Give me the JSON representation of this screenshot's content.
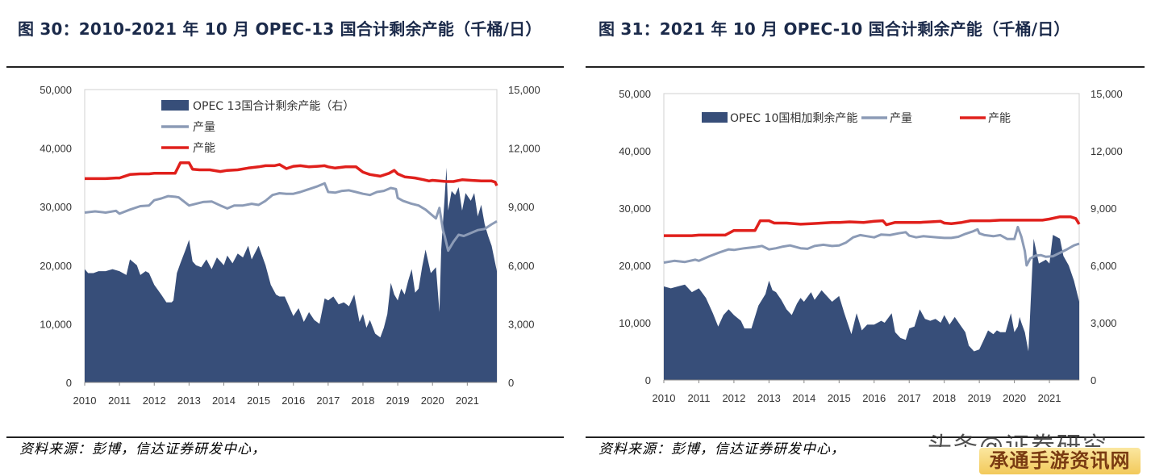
{
  "figures": [
    {
      "title": "图 30：2010-2021 年 10 月  OPEC-13 国合计剩余产能（千桶/日）",
      "source": "资料来源：彭博，信达证券研发中心，"
    },
    {
      "title": "图 31：2021 年 10 月 OPEC-10 国合计剩余产能（千桶/日）",
      "source": "资料来源：彭博，信达证券研发中心，"
    }
  ],
  "watermark": {
    "top": "头条@证券研究",
    "bottom": "承通手游资讯网"
  },
  "colors": {
    "spare": "#374e79",
    "production": "#8c9bb6",
    "capacity": "#e0201c"
  },
  "chart_data": [
    {
      "type": "area+line",
      "title": "图 30：2010-2021 年 10 月  OPEC-13 国合计剩余产能（千桶/日）",
      "x_ticks": [
        "2010",
        "2011",
        "2012",
        "2013",
        "2014",
        "2015",
        "2016",
        "2017",
        "2018",
        "2019",
        "2020",
        "2021"
      ],
      "x_range": [
        2010.0,
        2021.85
      ],
      "y_left": {
        "ticks": [
          "0",
          "10,000",
          "20,000",
          "30,000",
          "40,000",
          "50,000"
        ],
        "range": [
          0,
          50000
        ]
      },
      "y_right": {
        "ticks": [
          "0",
          "3,000",
          "6,000",
          "9,000",
          "12,000",
          "15,000"
        ],
        "range": [
          0,
          15000
        ]
      },
      "legend": [
        "OPEC 13国合计剩余产能（右）",
        "产量",
        "产能"
      ],
      "legend_position": "top-left, stacked",
      "series": [
        {
          "name": "OPEC 13国合计剩余产能（右）",
          "kind": "area",
          "axis": "right",
          "x": [
            2010,
            2010.1,
            2010.25,
            2010.4,
            2010.6,
            2010.8,
            2011,
            2011.2,
            2011.3,
            2011.5,
            2011.6,
            2011.75,
            2011.85,
            2012,
            2012.2,
            2012.35,
            2012.5,
            2012.55,
            2012.65,
            2012.75,
            2012.9,
            2013,
            2013.1,
            2013.2,
            2013.35,
            2013.5,
            2013.65,
            2013.8,
            2014,
            2014.1,
            2014.25,
            2014.4,
            2014.55,
            2014.7,
            2014.8,
            2015,
            2015.2,
            2015.35,
            2015.5,
            2015.6,
            2015.75,
            2015.9,
            2016,
            2016.15,
            2016.3,
            2016.45,
            2016.6,
            2016.75,
            2016.9,
            2017,
            2017.15,
            2017.3,
            2017.45,
            2017.6,
            2017.75,
            2017.9,
            2018,
            2018.1,
            2018.2,
            2018.35,
            2018.5,
            2018.6,
            2018.7,
            2018.8,
            2018.9,
            2019,
            2019.1,
            2019.2,
            2019.3,
            2019.4,
            2019.5,
            2019.6,
            2019.7,
            2019.8,
            2019.95,
            2020.1,
            2020.2,
            2020.25,
            2020.3,
            2020.35,
            2020.4,
            2020.45,
            2020.55,
            2020.65,
            2020.75,
            2020.85,
            2020.95,
            2021.1,
            2021.2,
            2021.3,
            2021.4,
            2021.5,
            2021.6,
            2021.7,
            2021.85
          ],
          "y": [
            5800,
            5600,
            5600,
            5700,
            5700,
            5800,
            5700,
            5500,
            6300,
            6000,
            5500,
            5700,
            5600,
            5000,
            4500,
            4100,
            4100,
            4200,
            5600,
            6100,
            6800,
            7300,
            6200,
            6000,
            5900,
            6300,
            5800,
            6400,
            6000,
            6500,
            6100,
            6600,
            6400,
            7000,
            6300,
            7000,
            6000,
            5000,
            4500,
            4400,
            4400,
            3800,
            3400,
            3800,
            3100,
            3600,
            3200,
            3000,
            4300,
            4200,
            4400,
            4000,
            4100,
            3900,
            4500,
            3100,
            3500,
            2800,
            3200,
            2500,
            2300,
            2800,
            3500,
            5100,
            4500,
            4200,
            4800,
            4500,
            5200,
            5800,
            4600,
            4800,
            5900,
            6800,
            5600,
            5900,
            3600,
            6800,
            8200,
            9500,
            11000,
            8800,
            9800,
            9600,
            10000,
            8800,
            9700,
            9300,
            9700,
            8500,
            9100,
            8100,
            7500,
            7000,
            5700
          ]
        },
        {
          "name": "产量",
          "kind": "line",
          "axis": "left",
          "x": [
            2010,
            2010.3,
            2010.6,
            2010.9,
            2011,
            2011.3,
            2011.6,
            2011.85,
            2012,
            2012.2,
            2012.4,
            2012.6,
            2012.7,
            2013,
            2013.2,
            2013.4,
            2013.65,
            2013.9,
            2014.1,
            2014.3,
            2014.55,
            2014.8,
            2015,
            2015.2,
            2015.4,
            2015.6,
            2015.8,
            2016,
            2016.2,
            2016.45,
            2016.7,
            2016.9,
            2017,
            2017.2,
            2017.4,
            2017.6,
            2017.8,
            2018,
            2018.2,
            2018.4,
            2018.6,
            2018.8,
            2018.95,
            2019,
            2019.15,
            2019.4,
            2019.6,
            2019.8,
            2020,
            2020.1,
            2020.2,
            2020.3,
            2020.35,
            2020.45,
            2020.6,
            2020.75,
            2020.9,
            2021.1,
            2021.3,
            2021.5,
            2021.7,
            2021.85
          ],
          "y": [
            29000,
            29200,
            29000,
            29300,
            28800,
            29500,
            30100,
            30200,
            31100,
            31400,
            31800,
            31700,
            31600,
            30200,
            30500,
            30800,
            30900,
            30200,
            29700,
            30200,
            30200,
            30500,
            30300,
            31000,
            32000,
            32300,
            32200,
            32200,
            32500,
            33000,
            33500,
            34000,
            32500,
            32400,
            32700,
            32800,
            32500,
            32200,
            32000,
            32500,
            32700,
            33200,
            33000,
            31500,
            31000,
            30500,
            30200,
            29500,
            28500,
            28000,
            29800,
            26000,
            25000,
            22500,
            24000,
            25200,
            25000,
            25500,
            26000,
            26200,
            27000,
            27500
          ]
        },
        {
          "name": "产能",
          "kind": "line",
          "axis": "left",
          "x": [
            2010,
            2010.3,
            2010.6,
            2010.9,
            2011,
            2011.3,
            2011.6,
            2011.85,
            2012,
            2012.3,
            2012.6,
            2012.75,
            2013,
            2013.1,
            2013.3,
            2013.6,
            2013.9,
            2014.1,
            2014.4,
            2014.7,
            2015,
            2015.2,
            2015.45,
            2015.6,
            2015.8,
            2016,
            2016.2,
            2016.45,
            2016.7,
            2016.9,
            2017,
            2017.2,
            2017.5,
            2017.8,
            2018,
            2018.2,
            2018.5,
            2018.75,
            2018.9,
            2019,
            2019.2,
            2019.5,
            2019.75,
            2019.9,
            2020,
            2020.2,
            2020.4,
            2020.6,
            2020.85,
            2021.1,
            2021.4,
            2021.7,
            2021.8,
            2021.85
          ],
          "y": [
            34800,
            34800,
            34800,
            34900,
            34900,
            35500,
            35600,
            35600,
            35700,
            35700,
            35700,
            37500,
            37500,
            36400,
            36300,
            36300,
            36000,
            36200,
            36300,
            36600,
            36800,
            37000,
            37000,
            37200,
            36500,
            36900,
            37000,
            36800,
            36900,
            37000,
            36800,
            36600,
            36800,
            36800,
            35900,
            35500,
            35200,
            35700,
            36200,
            35600,
            35100,
            34900,
            34600,
            34400,
            34500,
            34400,
            34300,
            34300,
            34600,
            34500,
            34400,
            34400,
            34200,
            33600
          ]
        }
      ]
    },
    {
      "type": "area+line",
      "title": "图 31：2021 年 10 月 OPEC-10 国合计剩余产能（千桶/日）",
      "x_ticks": [
        "2010",
        "2011",
        "2012",
        "2013",
        "2014",
        "2015",
        "2016",
        "2017",
        "2018",
        "2019",
        "2020",
        "2021"
      ],
      "x_range": [
        2010.0,
        2021.85
      ],
      "y_left": {
        "ticks": [
          "0",
          "10,000",
          "20,000",
          "30,000",
          "40,000",
          "50,000"
        ],
        "range": [
          0,
          50000
        ]
      },
      "y_right": {
        "ticks": [
          "0",
          "3,000",
          "6,000",
          "9,000",
          "12,000",
          "15,000"
        ],
        "range": [
          0,
          15000
        ]
      },
      "legend": [
        "OPEC 10国相加剩余产能",
        "产量",
        "产能"
      ],
      "legend_position": "top, single row",
      "series": [
        {
          "name": "OPEC 10国相加剩余产能",
          "kind": "area",
          "axis": "right",
          "x": [
            2010,
            2010.2,
            2010.4,
            2010.6,
            2010.8,
            2011,
            2011.2,
            2011.4,
            2011.55,
            2011.7,
            2011.85,
            2012,
            2012.2,
            2012.3,
            2012.5,
            2012.7,
            2012.9,
            2013,
            2013.1,
            2013.2,
            2013.35,
            2013.5,
            2013.65,
            2013.8,
            2013.9,
            2014,
            2014.2,
            2014.3,
            2014.5,
            2014.6,
            2014.8,
            2015,
            2015.15,
            2015.35,
            2015.5,
            2015.65,
            2015.8,
            2016,
            2016.2,
            2016.3,
            2016.5,
            2016.6,
            2016.75,
            2016.9,
            2017,
            2017.15,
            2017.3,
            2017.45,
            2017.6,
            2017.75,
            2017.9,
            2018,
            2018.15,
            2018.3,
            2018.45,
            2018.6,
            2018.7,
            2018.85,
            2019,
            2019.1,
            2019.25,
            2019.4,
            2019.5,
            2019.6,
            2019.75,
            2019.9,
            2020,
            2020.1,
            2020.15,
            2020.2,
            2020.3,
            2020.4,
            2020.55,
            2020.7,
            2020.8,
            2020.9,
            2021,
            2021.1,
            2021.2,
            2021.3,
            2021.4,
            2021.55,
            2021.7,
            2021.85
          ],
          "y": [
            4900,
            4800,
            4900,
            5000,
            4600,
            4800,
            4300,
            3500,
            2800,
            3400,
            3700,
            3400,
            3100,
            2700,
            2700,
            3900,
            4500,
            5200,
            4700,
            4600,
            4200,
            3700,
            3400,
            4000,
            4300,
            4100,
            4600,
            4200,
            4700,
            4500,
            4100,
            4400,
            3500,
            2400,
            3500,
            2600,
            2900,
            2900,
            3100,
            3000,
            3500,
            2500,
            2200,
            2100,
            2700,
            2800,
            3700,
            3200,
            3100,
            3200,
            3000,
            3400,
            2900,
            3300,
            2900,
            2500,
            1800,
            1500,
            1600,
            2000,
            2600,
            2400,
            2600,
            2500,
            2500,
            3500,
            2500,
            2800,
            3300,
            3000,
            2500,
            1500,
            7400,
            6100,
            6200,
            6300,
            6100,
            7600,
            7500,
            7400,
            6500,
            6000,
            5200,
            4100
          ]
        },
        {
          "name": "产量",
          "kind": "line",
          "axis": "left",
          "x": [
            2010,
            2010.3,
            2010.6,
            2010.9,
            2011,
            2011.3,
            2011.6,
            2011.85,
            2012,
            2012.3,
            2012.6,
            2012.8,
            2013,
            2013.2,
            2013.4,
            2013.6,
            2013.9,
            2014.1,
            2014.3,
            2014.55,
            2014.8,
            2015,
            2015.2,
            2015.4,
            2015.6,
            2015.8,
            2016,
            2016.2,
            2016.45,
            2016.7,
            2016.9,
            2017,
            2017.2,
            2017.4,
            2017.6,
            2017.8,
            2018,
            2018.2,
            2018.4,
            2018.6,
            2018.8,
            2018.95,
            2019,
            2019.15,
            2019.4,
            2019.6,
            2019.8,
            2020,
            2020.1,
            2020.2,
            2020.3,
            2020.35,
            2020.45,
            2020.6,
            2020.75,
            2020.9,
            2021.1,
            2021.3,
            2021.5,
            2021.7,
            2021.85
          ],
          "y": [
            20500,
            20800,
            20600,
            21000,
            20800,
            21600,
            22300,
            22800,
            22700,
            23000,
            23200,
            23400,
            22800,
            23000,
            23300,
            23500,
            23000,
            22900,
            23400,
            23600,
            23400,
            23500,
            24000,
            24900,
            25300,
            25100,
            24900,
            25400,
            25300,
            25600,
            25800,
            25200,
            24900,
            25100,
            25000,
            24900,
            24800,
            24800,
            25000,
            25500,
            25900,
            26300,
            25600,
            25300,
            25100,
            25300,
            24600,
            24600,
            26700,
            25000,
            22500,
            20000,
            21200,
            21700,
            21800,
            21500,
            21600,
            22200,
            22800,
            23500,
            23800
          ]
        },
        {
          "name": "产能",
          "kind": "line",
          "axis": "left",
          "x": [
            2010,
            2010.4,
            2010.8,
            2011,
            2011.4,
            2011.75,
            2012,
            2012.4,
            2012.6,
            2012.75,
            2013,
            2013.15,
            2013.5,
            2013.9,
            2014.2,
            2014.5,
            2014.8,
            2015,
            2015.3,
            2015.7,
            2016,
            2016.25,
            2016.35,
            2016.6,
            2017,
            2017.3,
            2017.6,
            2017.9,
            2018,
            2018.2,
            2018.5,
            2018.75,
            2019,
            2019.3,
            2019.6,
            2019.9,
            2020,
            2020.3,
            2020.6,
            2020.8,
            2021,
            2021.3,
            2021.6,
            2021.75,
            2021.85
          ],
          "y": [
            25200,
            25200,
            25200,
            25300,
            25300,
            25300,
            26100,
            26100,
            26100,
            27800,
            27800,
            27400,
            27400,
            27200,
            27300,
            27400,
            27500,
            27500,
            27600,
            27500,
            27700,
            27800,
            27100,
            27500,
            27500,
            27500,
            27600,
            27700,
            27400,
            27300,
            27500,
            27800,
            27800,
            27800,
            27900,
            27900,
            27900,
            27900,
            27900,
            27900,
            28100,
            28500,
            28500,
            28200,
            27200
          ]
        }
      ]
    }
  ]
}
